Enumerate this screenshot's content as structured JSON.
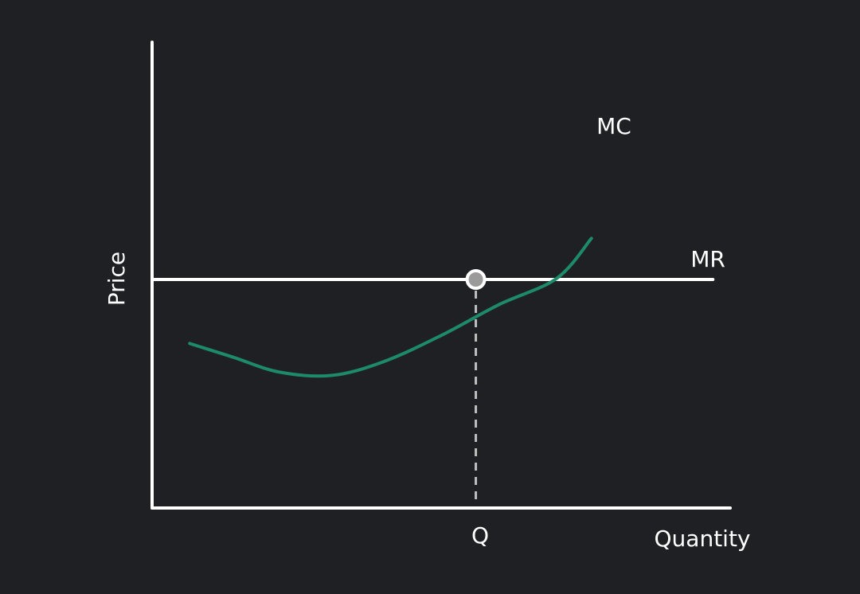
{
  "chart_data": {
    "type": "line",
    "title": "",
    "xlabel": "Quantity",
    "ylabel": "Price",
    "xlim": [
      0,
      10
    ],
    "ylim": [
      0,
      10
    ],
    "grid": false,
    "legend": "none",
    "colors": {
      "background": "#1f2023",
      "axes": "#ffffff",
      "mc": "#1d8a69",
      "mr": "#ffffff",
      "guide": "#bfbfbf",
      "marker_fill": "#9a9a9a",
      "marker_stroke": "#ffffff"
    },
    "series": [
      {
        "name": "MC",
        "points": [
          [
            0.65,
            7.2
          ],
          [
            1.4,
            6.6
          ],
          [
            2.2,
            5.95
          ],
          [
            3.1,
            5.8
          ],
          [
            4.0,
            6.4
          ],
          [
            5.0,
            7.55
          ],
          [
            6.0,
            8.9
          ],
          [
            7.0,
            10.05
          ],
          [
            7.6,
            11.8
          ]
        ]
      },
      {
        "name": "MR",
        "points": [
          [
            0,
            10
          ],
          [
            9.7,
            10
          ]
        ]
      }
    ],
    "equilibrium": {
      "x": 5.6,
      "y": 10,
      "tick_label": "Q"
    }
  }
}
